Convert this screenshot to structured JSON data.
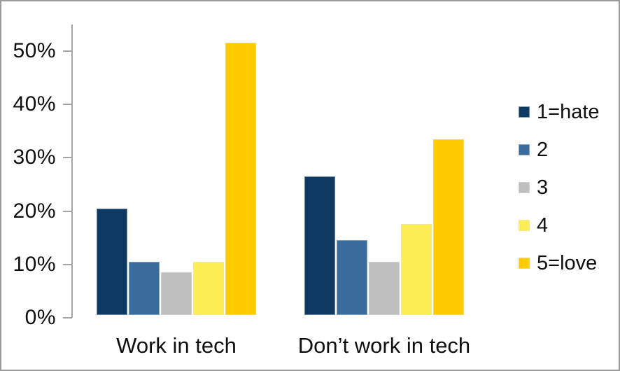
{
  "chart_data": {
    "type": "bar",
    "title": "",
    "xlabel": "",
    "ylabel": "",
    "categories": [
      "Work in tech",
      "Don’t work in tech"
    ],
    "series": [
      {
        "name": "1=hate",
        "color": "#0d3963",
        "values": [
          20,
          26
        ]
      },
      {
        "name": "2",
        "color": "#3a6b9d",
        "values": [
          10,
          14
        ]
      },
      {
        "name": "3",
        "color": "#bfbfbf",
        "values": [
          8,
          10
        ]
      },
      {
        "name": "4",
        "color": "#fdee55",
        "values": [
          10,
          17
        ]
      },
      {
        "name": "5=love",
        "color": "#ffcc00",
        "values": [
          51,
          33
        ]
      }
    ],
    "y_ticks": [
      "0%",
      "10%",
      "20%",
      "30%",
      "40%",
      "50%"
    ],
    "y_tick_values": [
      0,
      10,
      20,
      30,
      40,
      50
    ],
    "ylim": [
      0,
      55
    ],
    "grid": false,
    "legend_position": "right",
    "axis_color": "#a6a6a6"
  }
}
